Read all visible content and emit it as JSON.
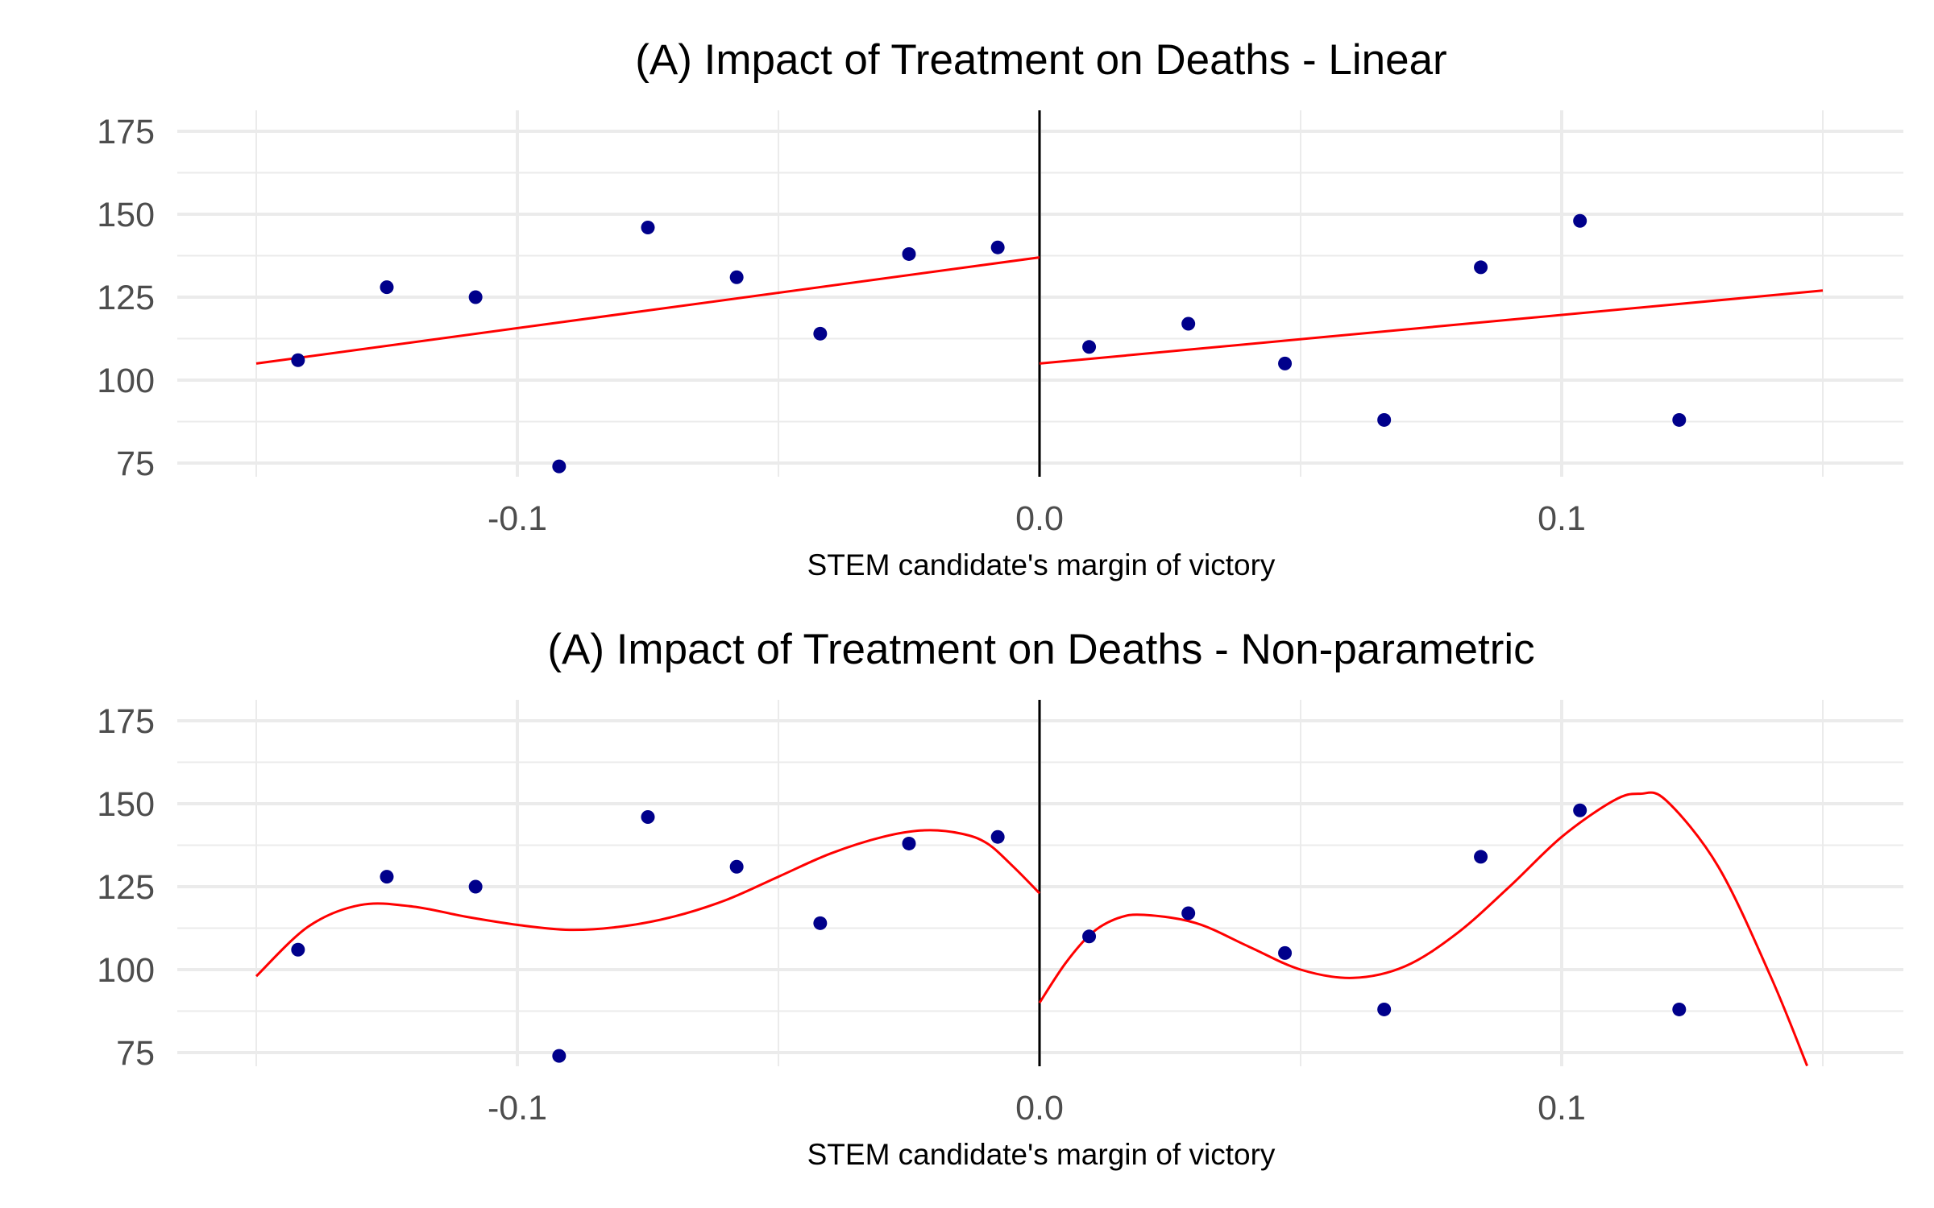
{
  "chart_data": [
    {
      "type": "scatter",
      "title": "(A) Impact of Treatment on Deaths - Linear",
      "subtitle": "",
      "xlabel": "STEM candidate's margin of victory",
      "ylabel": "",
      "xlim": [
        -0.15,
        0.15
      ],
      "ylim": [
        73,
        178
      ],
      "x_ticks": [
        -0.1,
        0.0,
        0.1
      ],
      "x_tick_labels": [
        "-0.1",
        "0.0",
        "0.1"
      ],
      "y_ticks": [
        75,
        100,
        125,
        150,
        175
      ],
      "y_tick_labels": [
        "75",
        "100",
        "125",
        "150",
        "175"
      ],
      "grid": true,
      "cutoff": 0.0,
      "colors": {
        "points": "#00008B",
        "fit": "#FF0000",
        "cutoff": "#000000",
        "grid": "#EBEBEB"
      },
      "points": {
        "x": [
          -0.142,
          -0.125,
          -0.108,
          -0.092,
          -0.075,
          -0.058,
          -0.042,
          -0.025,
          -0.008,
          0.0095,
          0.0285,
          0.047,
          0.066,
          0.0845,
          0.1035,
          0.1225
        ],
        "y": [
          106,
          128,
          125,
          74,
          146,
          131,
          114,
          138,
          140,
          110,
          117,
          105,
          88,
          134,
          148,
          88
        ]
      },
      "fit": {
        "method": "linear",
        "left": {
          "x": [
            -0.15,
            0.0
          ],
          "y": [
            105,
            137
          ]
        },
        "right": {
          "x": [
            0.0,
            0.15
          ],
          "y": [
            105,
            127
          ]
        }
      }
    },
    {
      "type": "scatter",
      "title": "(A) Impact of Treatment on Deaths - Non-parametric",
      "subtitle": "",
      "xlabel": "STEM candidate's margin of victory",
      "ylabel": "",
      "xlim": [
        -0.15,
        0.15
      ],
      "ylim": [
        73,
        178
      ],
      "x_ticks": [
        -0.1,
        0.0,
        0.1
      ],
      "x_tick_labels": [
        "-0.1",
        "0.0",
        "0.1"
      ],
      "y_ticks": [
        75,
        100,
        125,
        150,
        175
      ],
      "y_tick_labels": [
        "75",
        "100",
        "125",
        "150",
        "175"
      ],
      "grid": true,
      "cutoff": 0.0,
      "colors": {
        "points": "#00008B",
        "fit": "#FF0000",
        "cutoff": "#000000",
        "grid": "#EBEBEB"
      },
      "points": {
        "x": [
          -0.142,
          -0.125,
          -0.108,
          -0.092,
          -0.075,
          -0.058,
          -0.042,
          -0.025,
          -0.008,
          0.0095,
          0.0285,
          0.047,
          0.066,
          0.0845,
          0.1035,
          0.1225
        ],
        "y": [
          106,
          128,
          125,
          74,
          146,
          131,
          114,
          138,
          140,
          110,
          117,
          105,
          88,
          134,
          148,
          88
        ]
      },
      "fit": {
        "method": "smooth",
        "left": {
          "x": [
            -0.15,
            -0.14,
            -0.13,
            -0.12,
            -0.11,
            -0.1,
            -0.09,
            -0.08,
            -0.07,
            -0.06,
            -0.05,
            -0.04,
            -0.03,
            -0.022,
            -0.015,
            -0.01,
            -0.005,
            0.0
          ],
          "y": [
            98,
            113,
            119.5,
            119,
            116,
            113.5,
            112,
            113,
            116,
            121,
            128,
            135,
            140,
            142,
            141,
            138,
            131,
            123
          ]
        },
        "right": {
          "x": [
            0.0,
            0.005,
            0.01,
            0.015,
            0.02,
            0.03,
            0.04,
            0.05,
            0.06,
            0.07,
            0.08,
            0.09,
            0.1,
            0.11,
            0.115,
            0.12,
            0.13,
            0.14,
            0.147
          ],
          "y": [
            90,
            102,
            111,
            115.5,
            116.5,
            114,
            107,
            100,
            97.5,
            101,
            111,
            125,
            140,
            151,
            153,
            151,
            131,
            98,
            71
          ]
        }
      }
    }
  ]
}
